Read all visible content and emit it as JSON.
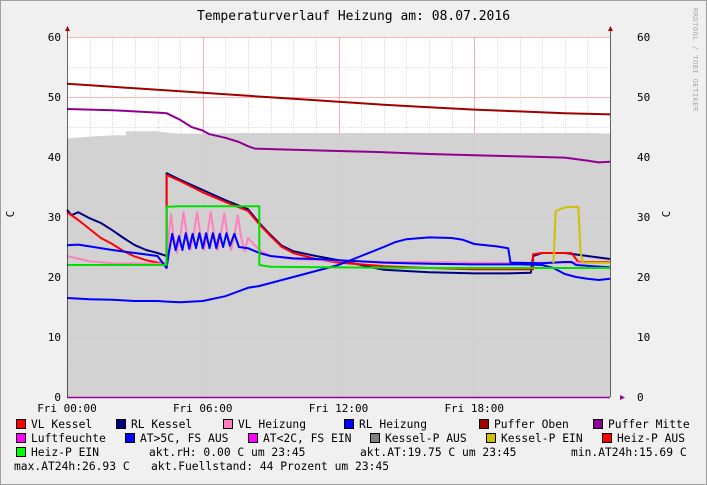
{
  "chart_data": {
    "type": "line",
    "title": "Temperaturverlauf Heizung am: 08.07.2016",
    "watermark": "RRDTOOL / TOBI OETIKER",
    "ylabel": "C",
    "ylabel_right": "C",
    "ylim": [
      0,
      60
    ],
    "yticks": [
      0,
      10,
      20,
      30,
      40,
      50,
      60
    ],
    "xlim": [
      0,
      24
    ],
    "xticks": [
      {
        "x": 0,
        "label": "Fri 00:00"
      },
      {
        "x": 6,
        "label": "Fri 06:00"
      },
      {
        "x": 12,
        "label": "Fri 12:00"
      },
      {
        "x": 18,
        "label": "Fri 18:00"
      }
    ],
    "grid": true,
    "series": [
      {
        "name": "Luftfeuchte",
        "color": "#d0d0d0",
        "type": "area",
        "points": [
          [
            0,
            43.1
          ],
          [
            0.4,
            43.2
          ],
          [
            1,
            43.4
          ],
          [
            2,
            43.6
          ],
          [
            2.6,
            43.6
          ],
          [
            2.6,
            44.3
          ],
          [
            4,
            44.3
          ],
          [
            4.3,
            44.1
          ],
          [
            5,
            43.9
          ],
          [
            6,
            43.9
          ],
          [
            8,
            44
          ],
          [
            10,
            44
          ],
          [
            12,
            44
          ],
          [
            14,
            44
          ],
          [
            16,
            44
          ],
          [
            18,
            44
          ],
          [
            20,
            44
          ],
          [
            22,
            44
          ],
          [
            23,
            44
          ],
          [
            24,
            43.9
          ]
        ]
      },
      {
        "name": "Puffer Oben",
        "color": "#a00000",
        "points": [
          [
            0,
            52.2
          ],
          [
            2,
            51.7
          ],
          [
            4,
            51.2
          ],
          [
            6,
            50.7
          ],
          [
            8,
            50.2
          ],
          [
            10,
            49.7
          ],
          [
            12,
            49.2
          ],
          [
            14,
            48.7
          ],
          [
            16,
            48.3
          ],
          [
            18,
            47.9
          ],
          [
            20,
            47.6
          ],
          [
            22,
            47.3
          ],
          [
            24,
            47.1
          ]
        ]
      },
      {
        "name": "Puffer Mitte",
        "color": "#900090",
        "points": [
          [
            0,
            48
          ],
          [
            2,
            47.8
          ],
          [
            4,
            47.4
          ],
          [
            4.4,
            47.3
          ],
          [
            5,
            46.2
          ],
          [
            5.5,
            45
          ],
          [
            6,
            44.4
          ],
          [
            6.3,
            43.8
          ],
          [
            7,
            43.2
          ],
          [
            7.6,
            42.5
          ],
          [
            8,
            41.8
          ],
          [
            8.3,
            41.4
          ],
          [
            10,
            41.2
          ],
          [
            12,
            41
          ],
          [
            14,
            40.8
          ],
          [
            16,
            40.5
          ],
          [
            18,
            40.3
          ],
          [
            20,
            40.1
          ],
          [
            22,
            39.9
          ],
          [
            23,
            39.4
          ],
          [
            23.5,
            39.1
          ],
          [
            24,
            39.2
          ]
        ]
      },
      {
        "name": "RL Kessel",
        "color": "#000080",
        "points": [
          [
            0,
            31.2
          ],
          [
            0.2,
            30.3
          ],
          [
            0.5,
            30.8
          ],
          [
            1,
            29.8
          ],
          [
            1.5,
            29
          ],
          [
            2,
            27.8
          ],
          [
            2.5,
            26.5
          ],
          [
            3,
            25.3
          ],
          [
            3.5,
            24.5
          ],
          [
            4,
            24
          ],
          [
            4.4,
            23.5
          ],
          [
            4.4,
            37.3
          ],
          [
            5,
            36.2
          ],
          [
            6,
            34.5
          ],
          [
            7,
            32.8
          ],
          [
            8,
            31.3
          ],
          [
            8.5,
            29
          ],
          [
            9,
            27
          ],
          [
            9.5,
            25.2
          ],
          [
            10,
            24.3
          ],
          [
            11,
            23.5
          ],
          [
            12,
            22.8
          ],
          [
            13,
            22
          ],
          [
            14,
            21.2
          ],
          [
            16,
            20.8
          ],
          [
            18,
            20.6
          ],
          [
            19.5,
            20.6
          ],
          [
            20.5,
            20.7
          ],
          [
            20.6,
            23.5
          ],
          [
            21,
            24
          ],
          [
            22,
            24
          ],
          [
            23,
            23.5
          ],
          [
            24,
            23
          ]
        ]
      },
      {
        "name": "VL Kessel",
        "color": "#ff0000",
        "points": [
          [
            0,
            30.8
          ],
          [
            0.5,
            29.5
          ],
          [
            1,
            28
          ],
          [
            1.5,
            26.5
          ],
          [
            2,
            25.5
          ],
          [
            2.5,
            24.3
          ],
          [
            3,
            23.4
          ],
          [
            3.5,
            22.8
          ],
          [
            4,
            22.4
          ],
          [
            4.4,
            22.2
          ],
          [
            4.4,
            37
          ],
          [
            5,
            36
          ],
          [
            6,
            34.1
          ],
          [
            7,
            32.5
          ],
          [
            8,
            31
          ],
          [
            8.5,
            28.8
          ],
          [
            9,
            26.8
          ],
          [
            9.5,
            25
          ],
          [
            10,
            24
          ],
          [
            11,
            23
          ],
          [
            12,
            22.4
          ],
          [
            14,
            21.8
          ],
          [
            16,
            21.5
          ],
          [
            18,
            21.3
          ],
          [
            20,
            21.3
          ],
          [
            20.6,
            21.3
          ],
          [
            20.6,
            23.8
          ],
          [
            21,
            24
          ],
          [
            22.3,
            24
          ],
          [
            22.6,
            22.5
          ],
          [
            24,
            22.5
          ]
        ]
      },
      {
        "name": "VL Heizung",
        "color": "#ff80c0",
        "points": [
          [
            0,
            23.5
          ],
          [
            1,
            22.6
          ],
          [
            2,
            22.3
          ],
          [
            4,
            22.2
          ],
          [
            4.4,
            22.2
          ],
          [
            4.5,
            27
          ],
          [
            4.6,
            30.5
          ],
          [
            4.7,
            27
          ],
          [
            4.85,
            24
          ],
          [
            5,
            26.5
          ],
          [
            5.15,
            30.8
          ],
          [
            5.3,
            27
          ],
          [
            5.45,
            24.5
          ],
          [
            5.6,
            27
          ],
          [
            5.75,
            30.8
          ],
          [
            5.9,
            27
          ],
          [
            6.05,
            24.5
          ],
          [
            6.2,
            27
          ],
          [
            6.35,
            30.8
          ],
          [
            6.5,
            27
          ],
          [
            6.65,
            24.5
          ],
          [
            6.8,
            27
          ],
          [
            6.95,
            30.6
          ],
          [
            7.1,
            27
          ],
          [
            7.25,
            24.5
          ],
          [
            7.4,
            27
          ],
          [
            7.55,
            30.3
          ],
          [
            7.7,
            26.5
          ],
          [
            7.85,
            24.3
          ],
          [
            8,
            26.5
          ],
          [
            8.5,
            24.5
          ],
          [
            9,
            23.5
          ],
          [
            10,
            23
          ],
          [
            12,
            22.7
          ],
          [
            14,
            22.5
          ],
          [
            16,
            22.5
          ],
          [
            18,
            22.4
          ],
          [
            20,
            22.3
          ],
          [
            21,
            22.4
          ],
          [
            24,
            22.4
          ]
        ]
      },
      {
        "name": "RL Heizung",
        "color": "#0000ff",
        "points": [
          [
            0,
            25.3
          ],
          [
            0.5,
            25.4
          ],
          [
            1,
            25.1
          ],
          [
            2,
            24.5
          ],
          [
            3,
            24
          ],
          [
            4,
            23.5
          ],
          [
            4.4,
            21.5
          ],
          [
            4.5,
            24
          ],
          [
            4.65,
            27.2
          ],
          [
            4.8,
            24.5
          ],
          [
            4.95,
            26.8
          ],
          [
            5.1,
            24.5
          ],
          [
            5.25,
            27.3
          ],
          [
            5.4,
            24.7
          ],
          [
            5.55,
            27.2
          ],
          [
            5.7,
            24.8
          ],
          [
            5.85,
            27.3
          ],
          [
            6,
            24.8
          ],
          [
            6.15,
            27.3
          ],
          [
            6.3,
            24.8
          ],
          [
            6.45,
            27.3
          ],
          [
            6.6,
            24.8
          ],
          [
            6.75,
            27.2
          ],
          [
            6.9,
            25
          ],
          [
            7.05,
            27.3
          ],
          [
            7.2,
            25.2
          ],
          [
            7.4,
            27.2
          ],
          [
            7.6,
            25
          ],
          [
            8,
            24.8
          ],
          [
            8.5,
            24
          ],
          [
            9,
            23.5
          ],
          [
            10,
            23.1
          ],
          [
            11,
            23
          ],
          [
            12,
            22.8
          ],
          [
            13,
            22.6
          ],
          [
            14,
            22.4
          ],
          [
            15,
            22.3
          ],
          [
            16,
            22.2
          ],
          [
            18,
            22.1
          ],
          [
            20,
            22.1
          ],
          [
            21,
            22
          ],
          [
            21.5,
            21.5
          ],
          [
            22,
            20.5
          ],
          [
            22.5,
            20
          ],
          [
            23,
            19.7
          ],
          [
            23.5,
            19.5
          ],
          [
            24,
            19.7
          ]
        ]
      },
      {
        "name": "AT>5C, FS AUS",
        "color": "#0000ff",
        "points": [
          [
            0,
            16.5
          ],
          [
            1,
            16.3
          ],
          [
            2,
            16.2
          ],
          [
            3,
            16
          ],
          [
            4,
            16
          ],
          [
            4.4,
            15.9
          ],
          [
            5,
            15.8
          ],
          [
            6,
            16
          ],
          [
            7,
            16.8
          ],
          [
            7.5,
            17.5
          ],
          [
            8,
            18.2
          ],
          [
            8.5,
            18.5
          ],
          [
            9,
            19
          ],
          [
            10,
            20
          ],
          [
            11,
            21
          ],
          [
            12,
            22
          ],
          [
            13,
            23.5
          ],
          [
            14,
            25
          ],
          [
            14.5,
            25.8
          ],
          [
            15,
            26.3
          ],
          [
            16,
            26.6
          ],
          [
            17,
            26.5
          ],
          [
            17.5,
            26.2
          ],
          [
            18,
            25.5
          ],
          [
            19,
            25.1
          ],
          [
            19.5,
            24.8
          ],
          [
            19.6,
            22.4
          ],
          [
            21,
            22.3
          ],
          [
            22,
            22.5
          ],
          [
            22.3,
            22.5
          ],
          [
            22.5,
            22
          ],
          [
            24,
            21.6
          ]
        ]
      },
      {
        "name": "Heiz-P EIN",
        "color": "#00e000",
        "points": [
          [
            0,
            22
          ],
          [
            4.4,
            22
          ],
          [
            4.4,
            31.7
          ],
          [
            5,
            31.8
          ],
          [
            7,
            31.8
          ],
          [
            8.5,
            31.8
          ],
          [
            8.5,
            22
          ],
          [
            9,
            21.7
          ],
          [
            12,
            21.6
          ],
          [
            16,
            21.5
          ],
          [
            20,
            21.5
          ],
          [
            24,
            21.5
          ]
        ]
      },
      {
        "name": "Kessel-P EIN",
        "color": "#d0c000",
        "points": [
          [
            21.5,
            22.3
          ],
          [
            21.6,
            31
          ],
          [
            22,
            31.6
          ],
          [
            22.6,
            31.7
          ],
          [
            22.7,
            24
          ],
          [
            22.8,
            22.4
          ],
          [
            24,
            22.4
          ]
        ]
      }
    ],
    "legend": [
      {
        "label": "VL Kessel",
        "color": "#ff0000"
      },
      {
        "label": "RL Kessel",
        "color": "#000080"
      },
      {
        "label": "VL Heizung",
        "color": "#ff80c0"
      },
      {
        "label": "RL Heizung",
        "color": "#0000ff"
      },
      {
        "label": "Puffer Oben",
        "color": "#a00000"
      },
      {
        "label": "Puffer Mitte",
        "color": "#900090"
      },
      {
        "label": "Luftfeuchte",
        "color": "#ff00ff"
      },
      {
        "label": "AT>5C, FS AUS",
        "color": "#0000ff"
      },
      {
        "label": "AT<2C, FS EIN",
        "color": "#ff00ff"
      },
      {
        "label": "Kessel-P AUS",
        "color": "#808080"
      },
      {
        "label": "Kessel-P EIN",
        "color": "#d0c000"
      },
      {
        "label": "Heiz-P AUS",
        "color": "#ff0000"
      },
      {
        "label": "Heiz-P EIN",
        "color": "#00ff00"
      }
    ],
    "info": {
      "akt_rh": "akt.rH: 0.00 C um 23:45",
      "akt_at": "akt.AT:19.75 C um 23:45",
      "min_at": "min.AT24h:15.69 C",
      "max_at": "max.AT24h:26.93 C",
      "fuellstand": "akt.Fuellstand:   44 Prozent um 23:45"
    }
  }
}
